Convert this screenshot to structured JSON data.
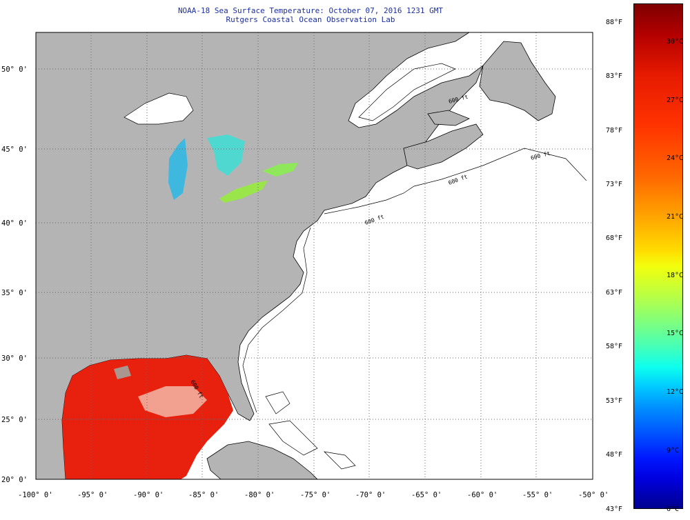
{
  "title": {
    "line1": "NOAA-18 Sea Surface Temperature:  October 07, 2016 1231 GMT",
    "line2": "Rutgers Coastal Ocean Observation Lab"
  },
  "map": {
    "lat_labels": [
      "50° 0'",
      "45° 0'",
      "40° 0'",
      "35° 0'",
      "30° 0'",
      "25° 0'",
      "20° 0'"
    ],
    "lon_labels": [
      "-100° 0'",
      "-95° 0'",
      "-90° 0'",
      "-85° 0'",
      "-80° 0'",
      "-75° 0'",
      "-70° 0'",
      "-65° 0'",
      "-60° 0'",
      "-55° 0'",
      "-50° 0'"
    ],
    "depth_labels": [
      "600 ft",
      "600 ft",
      "600 ft",
      "600 ft",
      "600 ft"
    ],
    "colors": {
      "land": "#b4b4b4",
      "water": "#ffffff",
      "warm": "#e8200e"
    }
  },
  "colorbar": {
    "f_labels": [
      "88°F",
      "83°F",
      "78°F",
      "73°F",
      "68°F",
      "63°F",
      "58°F",
      "53°F",
      "48°F",
      "43°F"
    ],
    "c_labels": [
      "30°C",
      "27°C",
      "24°C",
      "21°C",
      "18°C",
      "15°C",
      "12°C",
      "9°C",
      "6°C"
    ]
  }
}
